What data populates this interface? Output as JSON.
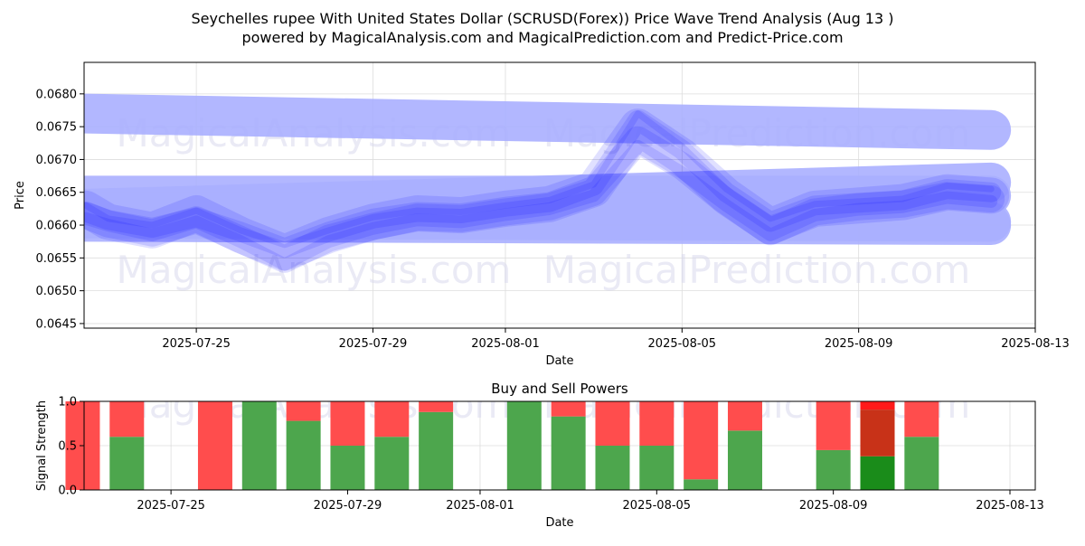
{
  "title_line1": "Seychelles rupee With United States Dollar (SCRUSD(Forex)) Price Wave Trend Analysis (Aug 13 )",
  "title_line2": "powered by MagicalAnalysis.com and MagicalPrediction.com and Predict-Price.com",
  "watermarks": [
    "MagicalAnalysis.com",
    "MagicalPrediction.com"
  ],
  "colors": {
    "wave": "#0000ff",
    "band": "#aab0ff",
    "buy": "#4da64d",
    "sell": "#ff4d4d",
    "buy_strong": "#1a8c1a",
    "sell_strong": "#ff1a1a",
    "mixed": "#c83218"
  },
  "chart_data": [
    {
      "type": "line",
      "title": "",
      "xlabel": "Date",
      "ylabel": "Price",
      "ylim": [
        0.06443,
        0.06848
      ],
      "xlim": [
        "2025-07-22T11:00",
        "2025-08-13"
      ],
      "grid": true,
      "x_ticks": [
        "2025-07-25",
        "2025-07-29",
        "2025-08-01",
        "2025-08-05",
        "2025-08-09",
        "2025-08-13"
      ],
      "y_ticks": [
        "0.0645",
        "0.0650",
        "0.0655",
        "0.0660",
        "0.0665",
        "0.0670",
        "0.0675",
        "0.0680"
      ],
      "x": [
        "2025-07-22T12:00",
        "2025-07-23",
        "2025-07-24",
        "2025-07-25",
        "2025-07-26",
        "2025-07-27",
        "2025-07-28",
        "2025-07-29",
        "2025-07-30",
        "2025-07-31",
        "2025-08-01",
        "2025-08-02",
        "2025-08-03",
        "2025-08-04",
        "2025-08-05",
        "2025-08-06",
        "2025-08-07",
        "2025-08-08",
        "2025-08-09",
        "2025-08-10",
        "2025-08-11",
        "2025-08-12"
      ],
      "series": [
        {
          "values": [
            0.06625,
            0.06605,
            0.06592,
            0.06618,
            0.06585,
            0.06558,
            0.06585,
            0.06605,
            0.06618,
            0.06615,
            0.06625,
            0.06632,
            0.06655,
            0.0675,
            0.06705,
            0.06645,
            0.06598,
            0.06625,
            0.0663,
            0.06635,
            0.0665,
            0.06645
          ]
        },
        {
          "values": [
            0.06615,
            0.06602,
            0.06588,
            0.06608,
            0.06578,
            0.06548,
            0.0658,
            0.06598,
            0.06612,
            0.0661,
            0.0662,
            0.06628,
            0.0665,
            0.0673,
            0.0669,
            0.06635,
            0.0659,
            0.0662,
            0.06628,
            0.06632,
            0.06645,
            0.0664
          ]
        },
        {
          "values": [
            0.0662,
            0.06608,
            0.06596,
            0.06612,
            0.0659,
            0.06565,
            0.0659,
            0.0661,
            0.0662,
            0.06618,
            0.06628,
            0.06635,
            0.0666,
            0.0676,
            0.06715,
            0.0665,
            0.06605,
            0.0663,
            0.06634,
            0.06638,
            0.06655,
            0.0665
          ]
        },
        {
          "values": [
            0.0661,
            0.066,
            0.06585,
            0.06605,
            0.06575,
            0.0654,
            0.06575,
            0.06595,
            0.06608,
            0.06605,
            0.06616,
            0.06625,
            0.06645,
            0.0672,
            0.0668,
            0.0663,
            0.06585,
            0.06615,
            0.06624,
            0.06628,
            0.06642,
            0.06636
          ]
        },
        {
          "values": [
            0.0663,
            0.0661,
            0.066,
            0.06622,
            0.06592,
            0.0657,
            0.06592,
            0.06612,
            0.06622,
            0.0662,
            0.0663,
            0.06638,
            0.06662,
            0.0677,
            0.0672,
            0.06655,
            0.0661,
            0.06632,
            0.06636,
            0.0664,
            0.0666,
            0.06655
          ]
        }
      ],
      "bands": [
        {
          "start": 0.0677,
          "end": 0.06745
        },
        {
          "start": 0.06645,
          "end": 0.06645
        },
        {
          "start": 0.06625,
          "end": 0.06665
        },
        {
          "start": 0.06605,
          "end": 0.066
        },
        {
          "start": 0.0661,
          "end": 0.06605
        }
      ]
    },
    {
      "type": "bar",
      "title": "Buy and Sell Powers",
      "xlabel": "Date",
      "ylabel": "Signal Strength",
      "ylim": [
        0,
        1.0
      ],
      "y_ticks": [
        "0.0",
        "0.5",
        "1.0"
      ],
      "x_ticks": [
        "2025-07-25",
        "2025-07-29",
        "2025-08-01",
        "2025-08-05",
        "2025-08-09",
        "2025-08-13"
      ],
      "categories": [
        "2025-07-23",
        "2025-07-24",
        "2025-07-26",
        "2025-07-27",
        "2025-07-28",
        "2025-07-29",
        "2025-07-30",
        "2025-07-31",
        "2025-08-02",
        "2025-08-03",
        "2025-08-04",
        "2025-08-05",
        "2025-08-06",
        "2025-08-07",
        "2025-08-09",
        "2025-08-10",
        "2025-08-11"
      ],
      "buy": [
        0.0,
        0.6,
        0.0,
        1.0,
        0.78,
        0.5,
        0.6,
        0.88,
        1.0,
        0.83,
        0.5,
        0.5,
        0.12,
        0.67,
        0.45,
        0.38,
        0.6
      ],
      "sell": [
        1.0,
        0.4,
        1.0,
        0.0,
        0.22,
        0.5,
        0.4,
        0.12,
        0.0,
        0.17,
        0.5,
        0.5,
        0.88,
        0.33,
        0.55,
        0.62,
        0.4
      ],
      "highlight": "2025-08-10"
    }
  ]
}
